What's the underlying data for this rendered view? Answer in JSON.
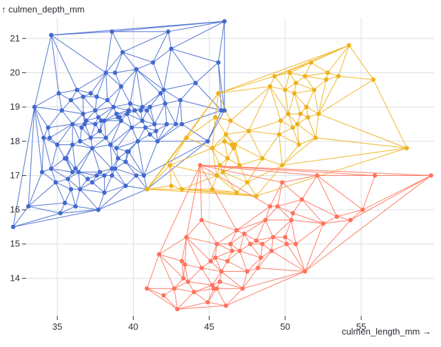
{
  "chart_data": {
    "type": "scatter",
    "xlabel": "culmen_length_mm →",
    "ylabel": "↑ culmen_depth_mm",
    "xlim": [
      32.5,
      59.8
    ],
    "ylim": [
      12.9,
      21.6
    ],
    "x_ticks": [
      35,
      40,
      45,
      50,
      55
    ],
    "y_ticks": [
      14,
      15,
      16,
      17,
      18,
      19,
      20,
      21
    ],
    "grid": true,
    "legend": "none",
    "overlay": "delaunay mesh within each series",
    "series": [
      {
        "color": "#4269d0",
        "points": [
          [
            32.1,
            15.5
          ],
          [
            33.1,
            16.1
          ],
          [
            33.5,
            19.0
          ],
          [
            34.0,
            17.1
          ],
          [
            34.1,
            18.1
          ],
          [
            34.4,
            18.4
          ],
          [
            34.5,
            18.1
          ],
          [
            34.6,
            21.1
          ],
          [
            34.6,
            17.2
          ],
          [
            34.9,
            16.8
          ],
          [
            35.0,
            17.9
          ],
          [
            35.1,
            19.4
          ],
          [
            35.2,
            15.9
          ],
          [
            35.3,
            18.9
          ],
          [
            35.5,
            17.5
          ],
          [
            35.5,
            16.2
          ],
          [
            35.6,
            17.5
          ],
          [
            35.7,
            16.9
          ],
          [
            35.9,
            19.2
          ],
          [
            35.9,
            16.6
          ],
          [
            36.0,
            18.5
          ],
          [
            36.0,
            17.9
          ],
          [
            36.0,
            17.1
          ],
          [
            36.2,
            17.2
          ],
          [
            36.2,
            16.1
          ],
          [
            36.3,
            19.5
          ],
          [
            36.4,
            17.1
          ],
          [
            36.5,
            18.0
          ],
          [
            36.5,
            16.6
          ],
          [
            36.6,
            18.4
          ],
          [
            36.7,
            19.3
          ],
          [
            36.7,
            18.8
          ],
          [
            36.8,
            18.5
          ],
          [
            36.9,
            18.6
          ],
          [
            37.0,
            16.9
          ],
          [
            37.2,
            18.1
          ],
          [
            37.2,
            19.4
          ],
          [
            37.3,
            16.8
          ],
          [
            37.3,
            17.8
          ],
          [
            37.5,
            18.9
          ],
          [
            37.5,
            18.5
          ],
          [
            37.6,
            19.3
          ],
          [
            37.6,
            17.0
          ],
          [
            37.7,
            18.7
          ],
          [
            37.7,
            16.0
          ],
          [
            37.8,
            17.1
          ],
          [
            37.8,
            18.3
          ],
          [
            37.9,
            18.6
          ],
          [
            38.1,
            18.6
          ],
          [
            38.1,
            17.0
          ],
          [
            38.1,
            16.5
          ],
          [
            38.2,
            18.1
          ],
          [
            38.2,
            20.0
          ],
          [
            38.3,
            19.2
          ],
          [
            38.5,
            17.9
          ],
          [
            38.6,
            21.2
          ],
          [
            38.6,
            17.2
          ],
          [
            38.6,
            17.0
          ],
          [
            38.7,
            19.0
          ],
          [
            38.8,
            17.2
          ],
          [
            38.8,
            20.0
          ],
          [
            38.9,
            18.8
          ],
          [
            38.9,
            17.8
          ],
          [
            39.0,
            17.5
          ],
          [
            39.0,
            18.7
          ],
          [
            39.1,
            18.7
          ],
          [
            39.2,
            19.6
          ],
          [
            39.2,
            18.6
          ],
          [
            39.3,
            20.6
          ],
          [
            39.5,
            17.4
          ],
          [
            39.5,
            16.7
          ],
          [
            39.6,
            18.8
          ],
          [
            39.6,
            17.7
          ],
          [
            39.7,
            18.9
          ],
          [
            39.7,
            17.7
          ],
          [
            39.8,
            19.1
          ],
          [
            39.9,
            18.4
          ],
          [
            40.1,
            18.9
          ],
          [
            40.2,
            17.0
          ],
          [
            40.2,
            20.1
          ],
          [
            40.3,
            18.0
          ],
          [
            40.5,
            18.9
          ],
          [
            40.6,
            18.6
          ],
          [
            40.6,
            19.0
          ],
          [
            40.7,
            17.0
          ],
          [
            40.8,
            18.4
          ],
          [
            40.9,
            16.6
          ],
          [
            40.9,
            18.9
          ],
          [
            41.1,
            19.0
          ],
          [
            41.1,
            18.2
          ],
          [
            41.3,
            20.3
          ],
          [
            41.4,
            18.5
          ],
          [
            41.5,
            18.3
          ],
          [
            41.6,
            18.0
          ],
          [
            41.8,
            19.4
          ],
          [
            42.0,
            19.5
          ],
          [
            42.1,
            19.1
          ],
          [
            42.2,
            18.5
          ],
          [
            42.3,
            21.2
          ],
          [
            42.5,
            20.7
          ],
          [
            42.8,
            18.5
          ],
          [
            43.1,
            19.2
          ],
          [
            43.2,
            18.5
          ],
          [
            44.1,
            19.7
          ],
          [
            44.9,
            18.0
          ],
          [
            45.6,
            20.3
          ],
          [
            45.8,
            18.9
          ],
          [
            46.0,
            21.5
          ],
          [
            46.0,
            18.9
          ]
        ]
      },
      {
        "color": "#efb118",
        "points": [
          [
            40.9,
            16.6
          ],
          [
            42.4,
            17.3
          ],
          [
            42.5,
            16.7
          ],
          [
            43.2,
            16.6
          ],
          [
            43.5,
            18.1
          ],
          [
            45.2,
            16.6
          ],
          [
            45.2,
            17.8
          ],
          [
            45.4,
            18.7
          ],
          [
            45.5,
            17.0
          ],
          [
            45.6,
            19.4
          ],
          [
            45.7,
            17.3
          ],
          [
            45.9,
            17.1
          ],
          [
            46.0,
            18.0
          ],
          [
            46.1,
            18.2
          ],
          [
            46.2,
            17.5
          ],
          [
            46.4,
            18.6
          ],
          [
            46.5,
            17.9
          ],
          [
            46.6,
            17.8
          ],
          [
            46.7,
            17.9
          ],
          [
            46.8,
            16.5
          ],
          [
            47.0,
            17.3
          ],
          [
            47.5,
            16.8
          ],
          [
            47.6,
            18.3
          ],
          [
            48.1,
            16.4
          ],
          [
            48.5,
            17.5
          ],
          [
            49.0,
            19.6
          ],
          [
            49.3,
            19.9
          ],
          [
            49.6,
            18.2
          ],
          [
            49.7,
            18.6
          ],
          [
            49.8,
            17.3
          ],
          [
            50.0,
            19.5
          ],
          [
            50.2,
            18.8
          ],
          [
            50.3,
            20.0
          ],
          [
            50.5,
            18.4
          ],
          [
            50.6,
            19.4
          ],
          [
            50.7,
            19.7
          ],
          [
            50.8,
            18.5
          ],
          [
            50.9,
            17.9
          ],
          [
            51.0,
            18.8
          ],
          [
            51.3,
            19.9
          ],
          [
            51.4,
            19.0
          ],
          [
            51.5,
            18.7
          ],
          [
            51.7,
            20.3
          ],
          [
            51.9,
            19.5
          ],
          [
            52.0,
            18.1
          ],
          [
            52.2,
            18.8
          ],
          [
            52.7,
            19.8
          ],
          [
            52.8,
            20.0
          ],
          [
            53.5,
            19.9
          ],
          [
            54.2,
            20.8
          ],
          [
            55.8,
            19.8
          ],
          [
            58.0,
            17.8
          ]
        ]
      },
      {
        "color": "#ff725c",
        "points": [
          [
            40.9,
            13.7
          ],
          [
            41.7,
            14.7
          ],
          [
            42.0,
            13.5
          ],
          [
            42.7,
            13.7
          ],
          [
            42.9,
            13.1
          ],
          [
            43.2,
            14.5
          ],
          [
            43.3,
            14.0
          ],
          [
            43.4,
            14.4
          ],
          [
            43.5,
            15.2
          ],
          [
            43.6,
            13.9
          ],
          [
            44.0,
            13.6
          ],
          [
            44.4,
            17.3
          ],
          [
            44.5,
            14.3
          ],
          [
            44.5,
            15.7
          ],
          [
            44.9,
            13.3
          ],
          [
            45.1,
            14.5
          ],
          [
            45.2,
            13.8
          ],
          [
            45.3,
            13.7
          ],
          [
            45.4,
            14.6
          ],
          [
            45.5,
            13.7
          ],
          [
            45.5,
            15.0
          ],
          [
            45.7,
            13.9
          ],
          [
            45.8,
            14.2
          ],
          [
            46.1,
            13.2
          ],
          [
            46.2,
            14.5
          ],
          [
            46.4,
            15.0
          ],
          [
            46.5,
            14.8
          ],
          [
            46.8,
            15.4
          ],
          [
            47.0,
            14.8
          ],
          [
            47.2,
            13.7
          ],
          [
            47.3,
            15.3
          ],
          [
            47.5,
            14.2
          ],
          [
            47.7,
            15.0
          ],
          [
            48.1,
            15.1
          ],
          [
            48.2,
            14.3
          ],
          [
            48.4,
            14.6
          ],
          [
            48.5,
            15.0
          ],
          [
            48.7,
            15.7
          ],
          [
            49.0,
            16.1
          ],
          [
            49.1,
            14.8
          ],
          [
            49.2,
            15.2
          ],
          [
            49.5,
            16.1
          ],
          [
            49.8,
            16.8
          ],
          [
            50.0,
            15.2
          ],
          [
            50.1,
            15.0
          ],
          [
            50.4,
            15.7
          ],
          [
            50.5,
            15.9
          ],
          [
            50.7,
            15.0
          ],
          [
            51.1,
            16.3
          ],
          [
            51.3,
            14.2
          ],
          [
            52.1,
            17.0
          ],
          [
            52.5,
            15.6
          ],
          [
            53.4,
            15.8
          ],
          [
            54.3,
            15.7
          ],
          [
            55.1,
            16.0
          ],
          [
            55.9,
            17.0
          ],
          [
            59.6,
            17.0
          ]
        ]
      }
    ]
  }
}
